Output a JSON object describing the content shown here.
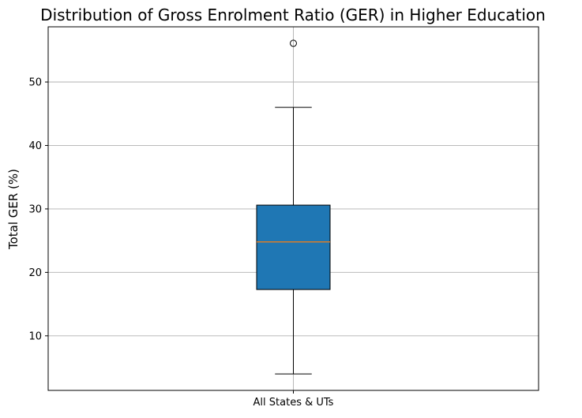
{
  "chart_data": {
    "type": "box",
    "title": "Distribution of Gross Enrolment Ratio (GER) in Higher Education",
    "xlabel": "",
    "ylabel": "Total GER (%)",
    "categories": [
      "All States & UTs"
    ],
    "ylim": [
      1.4,
      58.7
    ],
    "yticks": [
      10,
      20,
      30,
      40,
      50
    ],
    "grid": true,
    "boxes": [
      {
        "category": "All States & UTs",
        "whisker_low": 4.0,
        "q1": 17.3,
        "median": 24.8,
        "q3": 30.6,
        "whisker_high": 46.0,
        "outliers": [
          56.1
        ]
      }
    ],
    "colors": {
      "box_fill": "#1f77b4",
      "median_line": "#ff7f0e",
      "grid": "#b0b0b0",
      "frame": "#000000"
    }
  }
}
